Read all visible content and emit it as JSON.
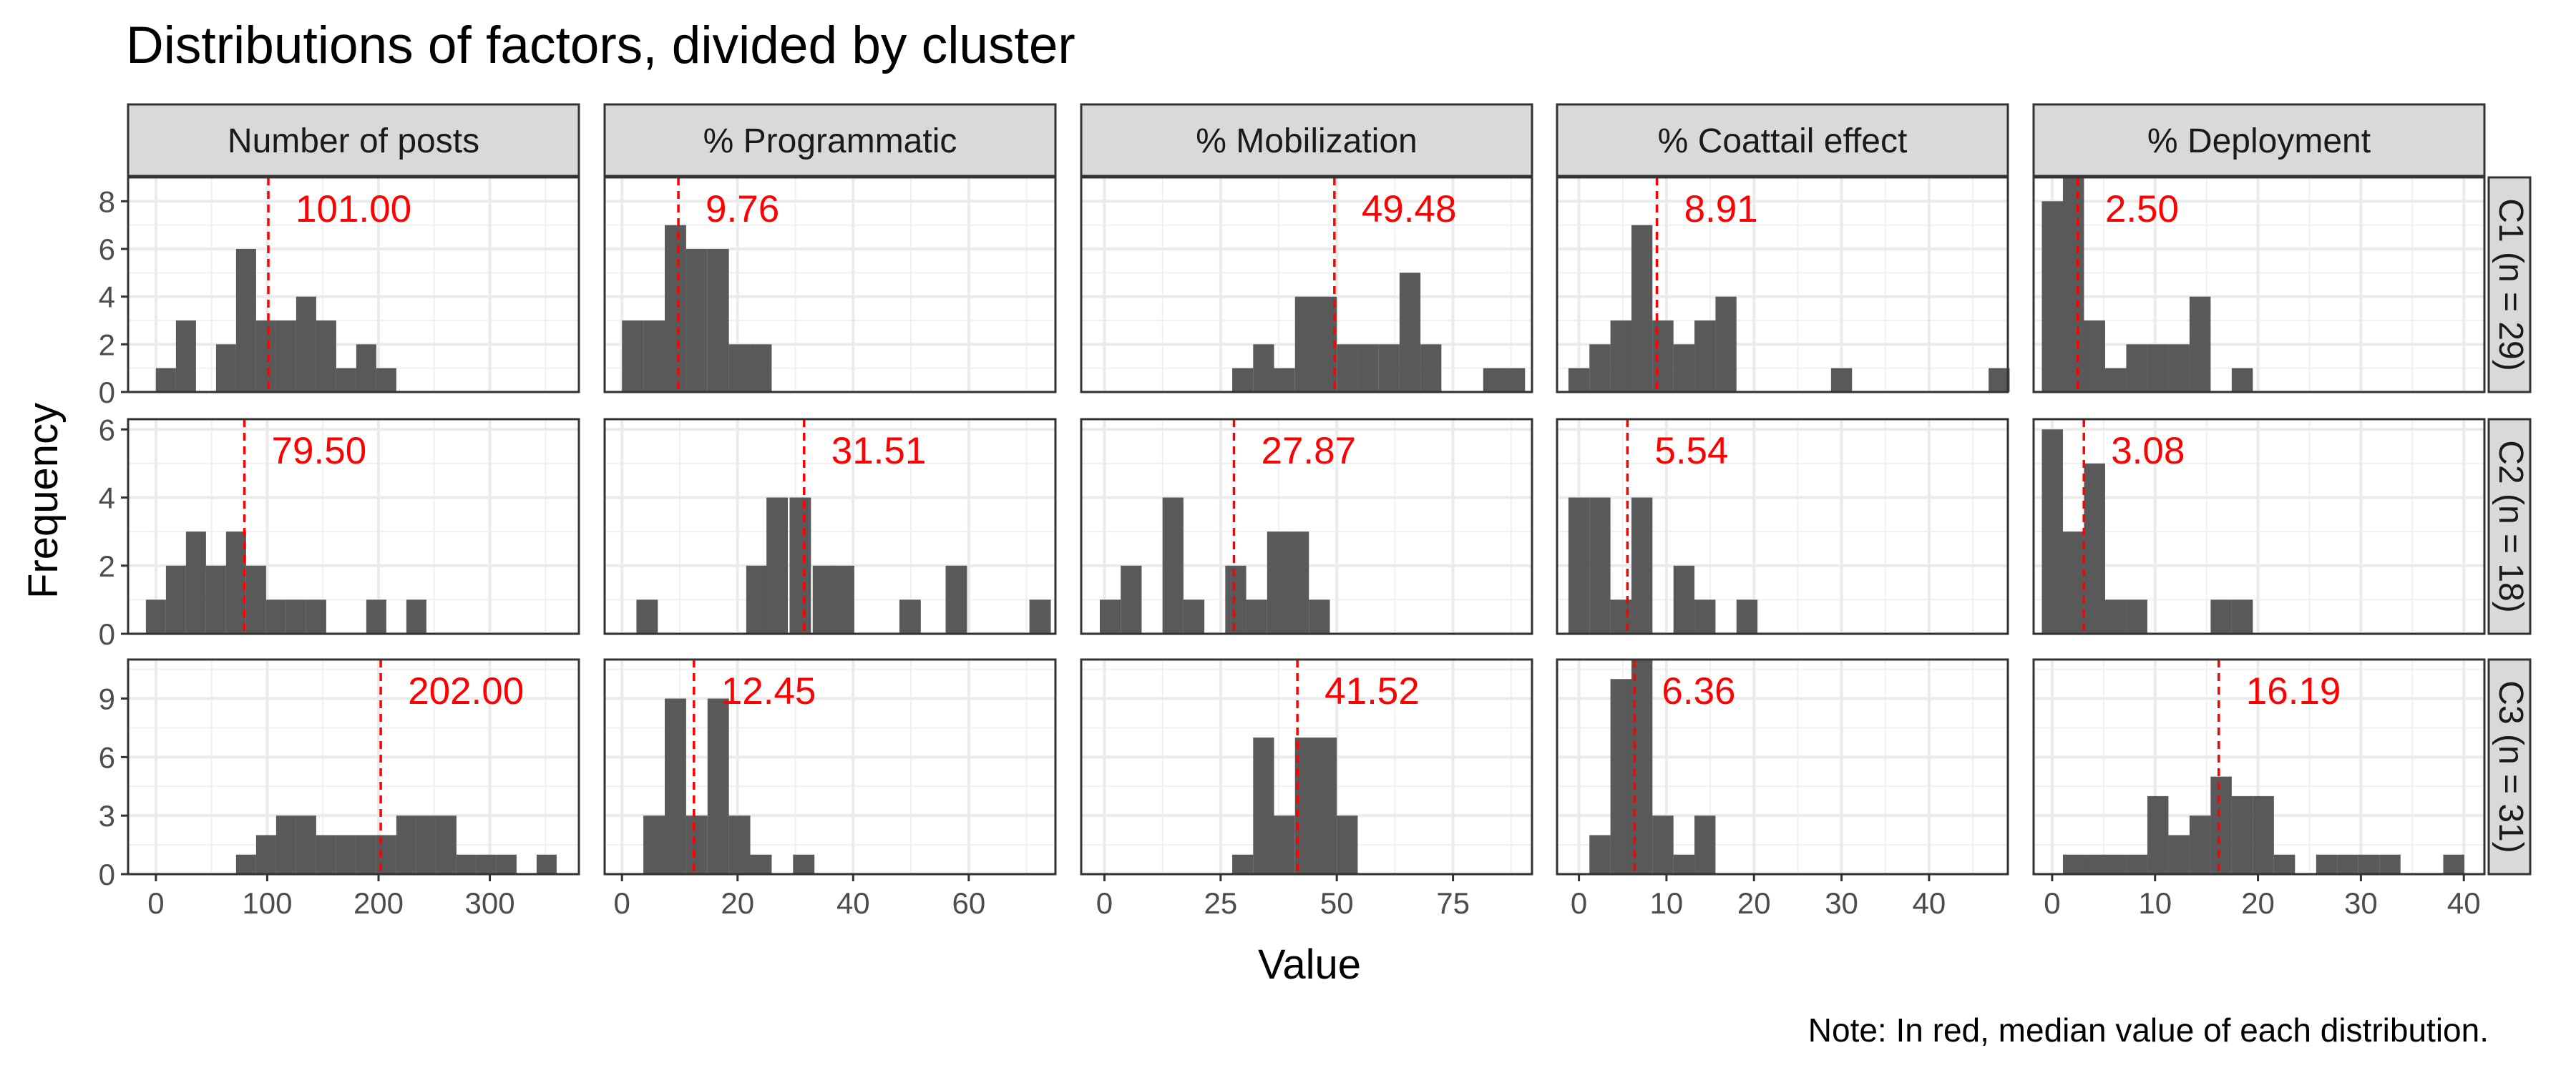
{
  "chart_data": {
    "type": "bar",
    "subtype": "faceted-histogram",
    "title": "Distributions of factors, divided by cluster",
    "xlabel": "Value",
    "ylabel": "Frequency",
    "note": "Note: In red, median value of each distribution.",
    "median_color": "#ff0000",
    "bar_color": "#595959",
    "grid": true,
    "columns": [
      {
        "name": "Number of posts",
        "xlim": [
          -25,
          380
        ],
        "xticks": [
          0,
          100,
          200,
          300
        ],
        "binwidth": 18
      },
      {
        "name": "% Programmatic",
        "xlim": [
          -3,
          75
        ],
        "xticks": [
          0,
          20,
          40,
          60
        ],
        "binwidth": 3.7
      },
      {
        "name": "% Mobilization",
        "xlim": [
          -5,
          92
        ],
        "xticks": [
          0,
          25,
          50,
          75
        ],
        "binwidth": 4.5
      },
      {
        "name": "% Coattail effect",
        "xlim": [
          -2.5,
          49
        ],
        "xticks": [
          0,
          10,
          20,
          30,
          40
        ],
        "binwidth": 2.4
      },
      {
        "name": "% Deployment",
        "xlim": [
          -1.8,
          42
        ],
        "xticks": [
          0,
          10,
          20,
          30,
          40
        ],
        "binwidth": 2.05
      }
    ],
    "rows": [
      {
        "name": "C1 (n = 29)",
        "ylim": [
          0,
          9
        ],
        "yticks": [
          0,
          2,
          4,
          6,
          8
        ]
      },
      {
        "name": "C2 (n = 18)",
        "ylim": [
          0,
          6.3
        ],
        "yticks": [
          0,
          2,
          4,
          6
        ]
      },
      {
        "name": "C3 (n = 31)",
        "ylim": [
          0,
          11
        ],
        "yticks": [
          0,
          3,
          6,
          9
        ]
      }
    ],
    "panels": [
      [
        {
          "median": 101.0,
          "median_label": "101.00",
          "bins": [
            [
              0,
              1
            ],
            [
              18,
              3
            ],
            [
              54,
              2
            ],
            [
              72,
              6
            ],
            [
              90,
              3
            ],
            [
              108,
              3
            ],
            [
              126,
              4
            ],
            [
              144,
              3
            ],
            [
              162,
              1
            ],
            [
              180,
              2
            ],
            [
              198,
              1
            ]
          ]
        },
        {
          "median": 9.76,
          "median_label": "9.76",
          "bins": [
            [
              0,
              3
            ],
            [
              3.7,
              3
            ],
            [
              7.4,
              7
            ],
            [
              11.1,
              6
            ],
            [
              14.8,
              6
            ],
            [
              18.5,
              2
            ],
            [
              22.2,
              2
            ]
          ]
        },
        {
          "median": 49.48,
          "median_label": "49.48",
          "bins": [
            [
              27.5,
              1
            ],
            [
              32,
              2
            ],
            [
              36.5,
              1
            ],
            [
              41,
              4
            ],
            [
              45.5,
              4
            ],
            [
              50,
              2
            ],
            [
              54.5,
              2
            ],
            [
              59,
              2
            ],
            [
              63.5,
              5
            ],
            [
              68,
              2
            ],
            [
              81.5,
              1
            ],
            [
              86,
              1
            ]
          ]
        },
        {
          "median": 8.91,
          "median_label": "8.91",
          "bins": [
            [
              -1.2,
              1
            ],
            [
              1.2,
              2
            ],
            [
              3.6,
              3
            ],
            [
              6,
              7
            ],
            [
              8.4,
              3
            ],
            [
              10.8,
              2
            ],
            [
              13.2,
              3
            ],
            [
              15.6,
              4
            ],
            [
              28.8,
              1
            ],
            [
              46.8,
              1
            ]
          ]
        },
        {
          "median": 2.5,
          "median_label": "2.50",
          "bins": [
            [
              -1,
              8
            ],
            [
              1.05,
              9
            ],
            [
              3.1,
              3
            ],
            [
              5.15,
              1
            ],
            [
              7.2,
              2
            ],
            [
              9.25,
              2
            ],
            [
              11.3,
              2
            ],
            [
              13.35,
              4
            ],
            [
              17.45,
              1
            ]
          ]
        }
      ],
      [
        {
          "median": 79.5,
          "median_label": "79.50",
          "bins": [
            [
              -9,
              1
            ],
            [
              9,
              2
            ],
            [
              27,
              3
            ],
            [
              45,
              2
            ],
            [
              63,
              3
            ],
            [
              81,
              2
            ],
            [
              99,
              1
            ],
            [
              117,
              1
            ],
            [
              135,
              1
            ],
            [
              189,
              1
            ],
            [
              225,
              1
            ]
          ]
        },
        {
          "median": 31.51,
          "median_label": "31.51",
          "bins": [
            [
              2.5,
              1
            ],
            [
              21.5,
              2
            ],
            [
              25,
              4
            ],
            [
              29,
              4
            ],
            [
              33,
              2
            ],
            [
              36.5,
              2
            ],
            [
              48,
              1
            ],
            [
              56,
              2
            ],
            [
              70.5,
              1
            ]
          ]
        },
        {
          "median": 27.87,
          "median_label": "27.87",
          "bins": [
            [
              -1,
              1
            ],
            [
              3.5,
              2
            ],
            [
              12.5,
              4
            ],
            [
              17,
              1
            ],
            [
              26,
              2
            ],
            [
              30.5,
              1
            ],
            [
              35,
              3
            ],
            [
              39.5,
              3
            ],
            [
              44,
              1
            ]
          ]
        },
        {
          "median": 5.54,
          "median_label": "5.54",
          "bins": [
            [
              -1.2,
              4
            ],
            [
              1.2,
              4
            ],
            [
              3.6,
              1
            ],
            [
              6,
              4
            ],
            [
              10.8,
              2
            ],
            [
              13.2,
              1
            ],
            [
              18,
              1
            ]
          ]
        },
        {
          "median": 3.08,
          "median_label": "3.08",
          "bins": [
            [
              -1,
              6
            ],
            [
              1.05,
              3
            ],
            [
              3.1,
              5
            ],
            [
              5.15,
              1
            ],
            [
              7.2,
              1
            ],
            [
              15.4,
              1
            ],
            [
              17.45,
              1
            ]
          ]
        }
      ],
      [
        {
          "median": 202.0,
          "median_label": "202.00",
          "bins": [
            [
              72,
              1
            ],
            [
              90,
              2
            ],
            [
              108,
              3
            ],
            [
              126,
              3
            ],
            [
              144,
              2
            ],
            [
              162,
              2
            ],
            [
              180,
              2
            ],
            [
              198,
              2
            ],
            [
              216,
              3
            ],
            [
              234,
              3
            ],
            [
              252,
              3
            ],
            [
              270,
              1
            ],
            [
              288,
              1
            ],
            [
              306,
              1
            ],
            [
              342,
              1
            ]
          ]
        },
        {
          "median": 12.45,
          "median_label": "12.45",
          "bins": [
            [
              3.7,
              3
            ],
            [
              7.4,
              9
            ],
            [
              11.1,
              3
            ],
            [
              14.8,
              9
            ],
            [
              18.5,
              3
            ],
            [
              22.2,
              1
            ],
            [
              29.6,
              1
            ]
          ]
        },
        {
          "median": 41.52,
          "median_label": "41.52",
          "bins": [
            [
              27.5,
              1
            ],
            [
              32,
              7
            ],
            [
              36.5,
              3
            ],
            [
              41,
              7
            ],
            [
              45.5,
              7
            ],
            [
              50,
              3
            ]
          ]
        },
        {
          "median": 6.36,
          "median_label": "6.36",
          "bins": [
            [
              1.2,
              2
            ],
            [
              3.6,
              10
            ],
            [
              6,
              11
            ],
            [
              8.4,
              3
            ],
            [
              10.8,
              1
            ],
            [
              13.2,
              3
            ]
          ]
        },
        {
          "median": 16.19,
          "median_label": "16.19",
          "bins": [
            [
              1.05,
              1
            ],
            [
              3.1,
              1
            ],
            [
              5.15,
              1
            ],
            [
              7.2,
              1
            ],
            [
              9.25,
              4
            ],
            [
              11.3,
              2
            ],
            [
              13.35,
              3
            ],
            [
              15.4,
              5
            ],
            [
              17.45,
              4
            ],
            [
              19.5,
              4
            ],
            [
              21.55,
              1
            ],
            [
              25.65,
              1
            ],
            [
              27.7,
              1
            ],
            [
              29.75,
              1
            ],
            [
              31.8,
              1
            ],
            [
              38,
              1
            ]
          ]
        }
      ]
    ]
  }
}
